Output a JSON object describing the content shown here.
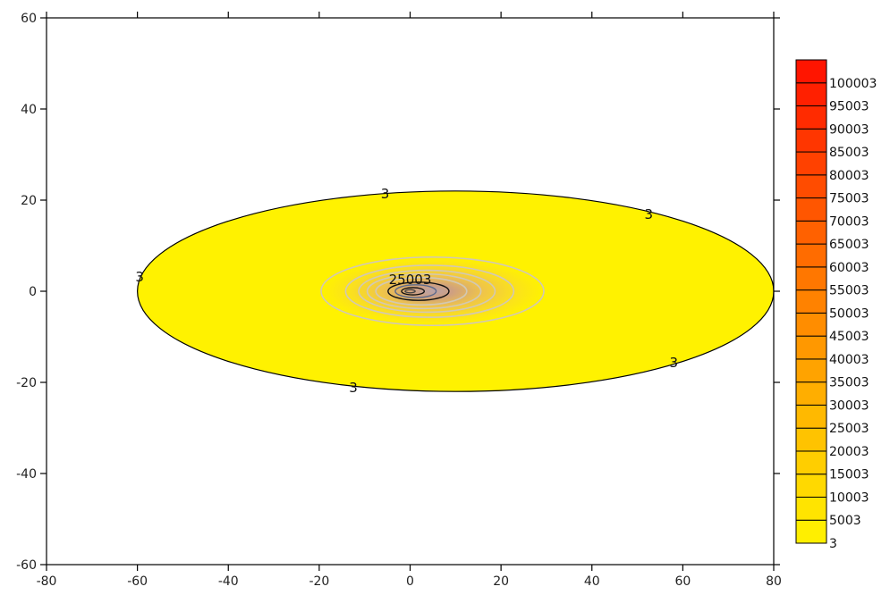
{
  "chart_data": {
    "type": "contour",
    "title": "",
    "xlabel": "",
    "ylabel": "",
    "xlim": [
      -80,
      80
    ],
    "ylim": [
      -60,
      60
    ],
    "x_ticks": [
      -80,
      -60,
      -40,
      -20,
      0,
      20,
      40,
      60,
      80
    ],
    "y_ticks": [
      -60,
      -40,
      -20,
      0,
      20,
      40,
      60
    ],
    "grid": false,
    "legend": {
      "placement": "right",
      "levels": [
        "3",
        "5003",
        "10003",
        "15003",
        "20003",
        "25003",
        "30003",
        "35003",
        "40003",
        "45003",
        "50003",
        "55003",
        "60003",
        "65003",
        "70003",
        "75003",
        "80003",
        "85003",
        "90003",
        "95003",
        "100003"
      ],
      "color_low": "#ffef00",
      "color_high": "#ff1500"
    },
    "outer_contour": {
      "level": "3",
      "x_range": [
        -60,
        80
      ],
      "y_range": [
        -22,
        22
      ],
      "fill": "#fff200"
    },
    "center": [
      0,
      0
    ],
    "inner_contours": [
      {
        "rx": 24.5,
        "ry": 7.5,
        "color": "#d2c8b4"
      },
      {
        "rx": 18.5,
        "ry": 5.7,
        "color": "#d2c8b4"
      },
      {
        "rx": 15,
        "ry": 4.6,
        "color": "#d2c8b4"
      },
      {
        "rx": 12.5,
        "ry": 3.8,
        "color": "#d2c8b4"
      },
      {
        "rx": 10,
        "ry": 3.0,
        "color": "#d2c8b4"
      },
      {
        "rx": 6.7,
        "ry": 2.0,
        "color": "#111111"
      },
      {
        "rx": 4.5,
        "ry": 1.4,
        "color": "#5c6a8c"
      },
      {
        "rx": 2.5,
        "ry": 0.8,
        "color": "#111111"
      },
      {
        "rx": 1.1,
        "ry": 0.35,
        "color": "#444444"
      }
    ],
    "contour_labels": [
      {
        "text": "3",
        "x": -5.5,
        "y": 21.3
      },
      {
        "text": "3",
        "x": 52.5,
        "y": 16.8
      },
      {
        "text": "3",
        "x": -59.5,
        "y": 3
      },
      {
        "text": "3",
        "x": 58,
        "y": -15.8
      },
      {
        "text": "3",
        "x": -12.5,
        "y": -21.3
      },
      {
        "text": "25003",
        "x": 0,
        "y": 2.5
      }
    ]
  }
}
